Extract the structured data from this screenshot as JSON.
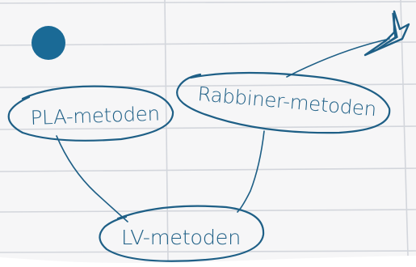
{
  "nodes": [
    {
      "id": "pla",
      "label": "PLA-metoden"
    },
    {
      "id": "rabbiner",
      "label": "Rabbiner-metoden"
    },
    {
      "id": "lv",
      "label": "LV-metoden"
    }
  ],
  "edges": [
    {
      "from": "pla",
      "to": "lv"
    },
    {
      "from": "rabbiner",
      "to": "lv"
    }
  ],
  "colors": {
    "ink": "#1e5f86",
    "paper": "#f6f6f7",
    "rule_lines": "#d3d6dc",
    "dot": "#1a6a96"
  },
  "icons": {
    "top_right": "arrow-icon"
  }
}
